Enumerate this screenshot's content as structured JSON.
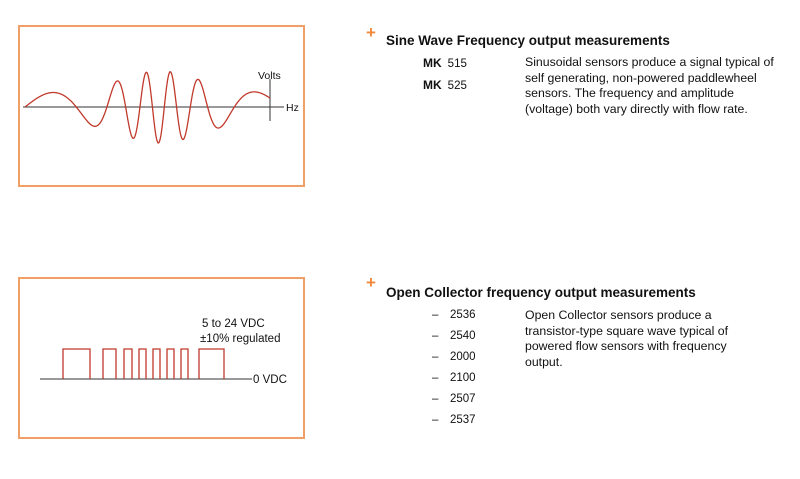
{
  "sine": {
    "diagram": {
      "y_axis_label": "Volts",
      "x_axis_label": "Hz"
    },
    "title": "Sine Wave Frequency output measurements",
    "models": [
      {
        "prefix": "MK",
        "number": "515"
      },
      {
        "prefix": "MK",
        "number": "525"
      }
    ],
    "description": "Sinusoidal sensors produce a signal typical of self generating, non-powered paddlewheel sensors.  The frequency and amplitude (voltage) both vary directly with flow rate."
  },
  "open_collector": {
    "diagram": {
      "voltage_label_line1": "5 to 24 VDC",
      "voltage_label_line2": "±10% regulated",
      "baseline_label": "0 VDC"
    },
    "title": "Open Collector frequency output measurements",
    "models": [
      {
        "prefix": "–",
        "number": "2536"
      },
      {
        "prefix": "–",
        "number": "2540"
      },
      {
        "prefix": "–",
        "number": "2000"
      },
      {
        "prefix": "–",
        "number": "2100"
      },
      {
        "prefix": "–",
        "number": "2507"
      },
      {
        "prefix": "–",
        "number": "2537"
      }
    ],
    "description": "Open Collector sensors produce a transistor-type square wave typical of powered flow sensors with frequency output."
  },
  "colors": {
    "accent": "#f08a3c",
    "panel_border": "#f0a066",
    "signal": "#c0392b"
  },
  "icons": {
    "bullet": "plus-icon"
  }
}
